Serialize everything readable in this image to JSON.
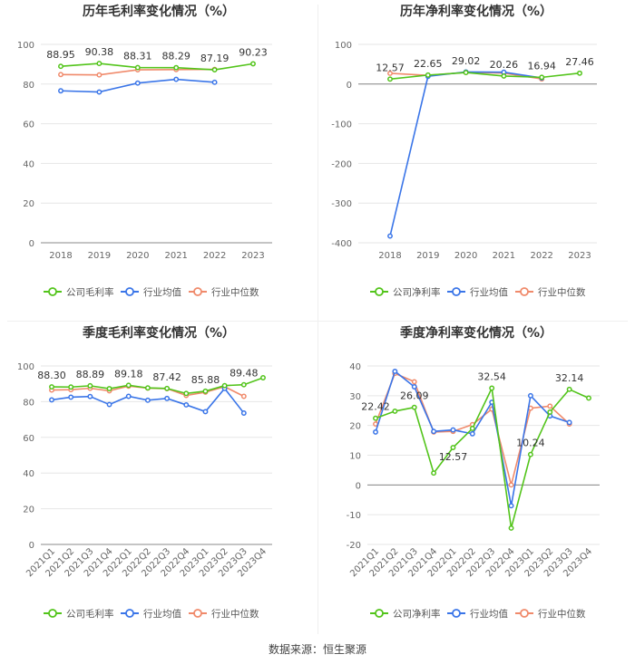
{
  "source_label": "数据来源：恒生聚源",
  "chart_data": [
    {
      "type": "line",
      "title": "历年毛利率变化情况（%）",
      "categories": [
        "2018",
        "2019",
        "2020",
        "2021",
        "2022",
        "2023"
      ],
      "ylim": [
        0,
        100
      ],
      "yticks": [
        0,
        20,
        40,
        60,
        80,
        100
      ],
      "series": [
        {
          "name": "公司毛利率",
          "color": "#52c41a",
          "values": [
            88.95,
            90.38,
            88.31,
            88.29,
            87.19,
            90.23
          ]
        },
        {
          "name": "行业均值",
          "color": "#3a75e8",
          "values": [
            76.6,
            76.0,
            80.5,
            82.4,
            80.9,
            null
          ]
        },
        {
          "name": "行业中位数",
          "color": "#f08a6b",
          "values": [
            84.8,
            84.6,
            87.2,
            87.3,
            87.4,
            null
          ]
        }
      ],
      "data_labels": [
        "88.95",
        "90.38",
        "88.31",
        "88.29",
        "87.19",
        "90.23"
      ],
      "legend_position": "bottom"
    },
    {
      "type": "line",
      "title": "历年净利率变化情况（%）",
      "categories": [
        "2018",
        "2019",
        "2020",
        "2021",
        "2022",
        "2023"
      ],
      "ylim": [
        -400,
        100
      ],
      "yticks": [
        -400,
        -300,
        -200,
        -100,
        0,
        100
      ],
      "series": [
        {
          "name": "公司净利率",
          "color": "#52c41a",
          "values": [
            12.57,
            22.65,
            29.02,
            20.26,
            16.94,
            27.46
          ]
        },
        {
          "name": "行业均值",
          "color": "#3a75e8",
          "values": [
            -383,
            19.5,
            30.5,
            30.0,
            15.5,
            null
          ]
        },
        {
          "name": "行业中位数",
          "color": "#f08a6b",
          "values": [
            27.0,
            22.0,
            29.5,
            27.5,
            13.0,
            null
          ]
        }
      ],
      "data_labels": [
        "12.57",
        "22.65",
        "29.02",
        "20.26",
        "16.94",
        "27.46"
      ],
      "legend_position": "bottom"
    },
    {
      "type": "line",
      "title": "季度毛利率变化情况（%）",
      "categories": [
        "2021Q1",
        "2021Q2",
        "2021Q3",
        "2021Q4",
        "2022Q1",
        "2022Q2",
        "2022Q3",
        "2022Q4",
        "2023Q1",
        "2023Q2",
        "2023Q3",
        "2023Q4"
      ],
      "ylim": [
        0,
        100
      ],
      "yticks": [
        0,
        20,
        40,
        60,
        80,
        100
      ],
      "series": [
        {
          "name": "公司毛利率",
          "color": "#52c41a",
          "values": [
            88.3,
            88.2,
            88.89,
            87.3,
            89.18,
            87.7,
            87.42,
            84.6,
            85.88,
            89.0,
            89.48,
            93.4
          ]
        },
        {
          "name": "行业均值",
          "color": "#3a75e8",
          "values": [
            81.0,
            82.5,
            82.9,
            78.4,
            83.0,
            80.8,
            81.8,
            78.2,
            74.4,
            87.4,
            73.6,
            null
          ]
        },
        {
          "name": "行业中位数",
          "color": "#f08a6b",
          "values": [
            86.5,
            86.7,
            87.5,
            86.1,
            88.7,
            87.6,
            87.3,
            83.5,
            85.3,
            88.4,
            83.0,
            null
          ]
        }
      ],
      "data_labels": {
        "0": "88.30",
        "2": "88.89",
        "4": "89.18",
        "6": "87.42",
        "8": "85.88",
        "10": "89.48"
      },
      "legend_position": "bottom"
    },
    {
      "type": "line",
      "title": "季度净利率变化情况（%）",
      "categories": [
        "2021Q1",
        "2021Q2",
        "2021Q3",
        "2021Q4",
        "2022Q1",
        "2022Q2",
        "2022Q3",
        "2022Q4",
        "2023Q1",
        "2023Q2",
        "2023Q3",
        "2023Q4"
      ],
      "ylim": [
        -20,
        40
      ],
      "yticks": [
        -20,
        -10,
        0,
        10,
        20,
        30,
        40
      ],
      "series": [
        {
          "name": "公司净利率",
          "color": "#52c41a",
          "values": [
            22.42,
            24.8,
            26.09,
            4.0,
            12.57,
            19.0,
            32.54,
            -14.5,
            10.24,
            24.5,
            32.14,
            29.2
          ]
        },
        {
          "name": "行业均值",
          "color": "#3a75e8",
          "values": [
            17.8,
            38.2,
            33.0,
            18.0,
            18.5,
            17.2,
            27.8,
            -7.0,
            30.0,
            23.2,
            21.0,
            null
          ]
        },
        {
          "name": "行业中位数",
          "color": "#f08a6b",
          "values": [
            20.5,
            37.5,
            34.7,
            17.8,
            18.0,
            20.3,
            25.5,
            0.0,
            25.8,
            26.5,
            20.5,
            null
          ]
        }
      ],
      "data_labels": {
        "0": "22.42",
        "2": "26.09",
        "4": "12.57",
        "6": "32.54",
        "8": "10.24",
        "10": "32.14"
      },
      "legend_position": "bottom"
    }
  ]
}
